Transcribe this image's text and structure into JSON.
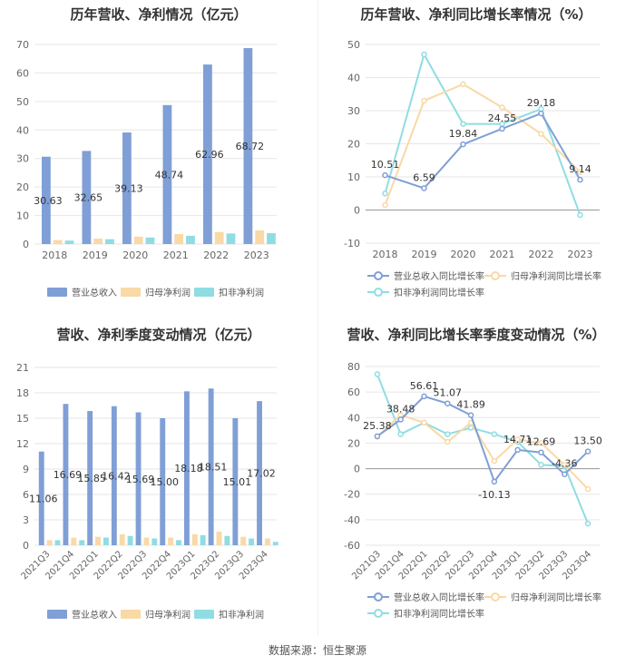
{
  "source": "数据来源：恒生聚源",
  "colors": {
    "blue": "#7f9fd6",
    "orange": "#f9d9a6",
    "cyan": "#8fdde3"
  },
  "chart_data": [
    {
      "id": "annual-bar",
      "type": "bar",
      "title": "历年营收、净利情况（亿元）",
      "categories": [
        "2018",
        "2019",
        "2020",
        "2021",
        "2022",
        "2023"
      ],
      "series": [
        {
          "name": "营业总收入",
          "values": [
            30.63,
            32.65,
            39.13,
            48.74,
            62.96,
            68.72
          ]
        },
        {
          "name": "归母净利润",
          "values": [
            1.4,
            1.9,
            2.6,
            3.5,
            4.2,
            4.8
          ]
        },
        {
          "name": "扣非净利润",
          "values": [
            1.2,
            1.7,
            2.3,
            2.9,
            3.7,
            3.8
          ]
        }
      ],
      "labels": [
        "30.63",
        "32.65",
        "39.13",
        "48.74",
        "62.96",
        "68.72"
      ],
      "yticks": [
        "0",
        "10",
        "20",
        "30",
        "40",
        "50",
        "60",
        "70"
      ],
      "ylim": [
        0,
        70
      ]
    },
    {
      "id": "annual-line",
      "type": "line",
      "title": "历年营收、净利同比增长率情况（%）",
      "categories": [
        "2018",
        "2019",
        "2020",
        "2021",
        "2022",
        "2023"
      ],
      "series": [
        {
          "name": "营业总收入同比增长率",
          "values": [
            10.51,
            6.59,
            19.84,
            24.55,
            29.18,
            9.14
          ]
        },
        {
          "name": "归母净利润同比增长率",
          "values": [
            1.5,
            33.0,
            38.0,
            31.0,
            23.0,
            11.5
          ]
        },
        {
          "name": "扣非净利润同比增长率",
          "values": [
            5.0,
            47.0,
            26.0,
            26.0,
            30.5,
            -1.5
          ]
        }
      ],
      "labels": [
        "10.51",
        "6.59",
        "19.84",
        "24.55",
        "29.18",
        "9.14"
      ],
      "yticks": [
        "-10",
        "0",
        "10",
        "20",
        "30",
        "40",
        "50"
      ],
      "ylim": [
        -10,
        50
      ]
    },
    {
      "id": "quarter-bar",
      "type": "bar",
      "title": "营收、净利季度变动情况（亿元）",
      "categories": [
        "2021Q3",
        "2021Q4",
        "2022Q1",
        "2022Q2",
        "2022Q3",
        "2022Q4",
        "2023Q1",
        "2023Q2",
        "2023Q3",
        "2023Q4"
      ],
      "series": [
        {
          "name": "营业总收入",
          "values": [
            11.06,
            16.69,
            15.85,
            16.42,
            15.69,
            15.0,
            18.18,
            18.51,
            15.01,
            17.02
          ]
        },
        {
          "name": "归母净利润",
          "values": [
            0.6,
            0.9,
            1.0,
            1.3,
            0.9,
            0.9,
            1.3,
            1.6,
            1.0,
            0.8
          ]
        },
        {
          "name": "扣非净利润",
          "values": [
            0.6,
            0.6,
            0.9,
            1.1,
            0.8,
            0.6,
            1.2,
            1.1,
            0.8,
            0.4
          ]
        }
      ],
      "labels": [
        "11.06",
        "16.69",
        "15.85",
        "16.42",
        "15.69",
        "15.00",
        "18.18",
        "18.51",
        "15.01",
        "17.02"
      ],
      "yticks": [
        "0",
        "3",
        "6",
        "9",
        "12",
        "15",
        "18",
        "21"
      ],
      "ylim": [
        0,
        21
      ]
    },
    {
      "id": "quarter-line",
      "type": "line",
      "title": "营收、净利同比增长率季度变动情况（%）",
      "categories": [
        "2021Q3",
        "2021Q4",
        "2022Q1",
        "2022Q2",
        "2022Q3",
        "2022Q4",
        "2023Q1",
        "2023Q2",
        "2023Q3",
        "2023Q4"
      ],
      "series": [
        {
          "name": "营业总收入同比增长率",
          "values": [
            25.38,
            38.48,
            56.61,
            51.07,
            41.89,
            -10.13,
            14.71,
            12.69,
            -4.36,
            13.5
          ]
        },
        {
          "name": "归母净利润同比增长率",
          "values": [
            25.0,
            42.0,
            36.0,
            21.0,
            36.0,
            6.0,
            23.0,
            20.0,
            3.0,
            -16.0
          ]
        },
        {
          "name": "扣非净利润同比增长率",
          "values": [
            74.0,
            27.0,
            36.0,
            27.0,
            32.0,
            27.0,
            21.0,
            3.0,
            2.0,
            -43.0
          ]
        }
      ],
      "labels": [
        "25.38",
        "38.48",
        "56.61",
        "51.07",
        "41.89",
        "-10.13",
        "14.71",
        "12.69",
        "-4.36",
        "13.50"
      ],
      "yticks": [
        "-60",
        "-40",
        "-20",
        "0",
        "20",
        "40",
        "60",
        "80"
      ],
      "ylim": [
        -60,
        80
      ]
    }
  ]
}
